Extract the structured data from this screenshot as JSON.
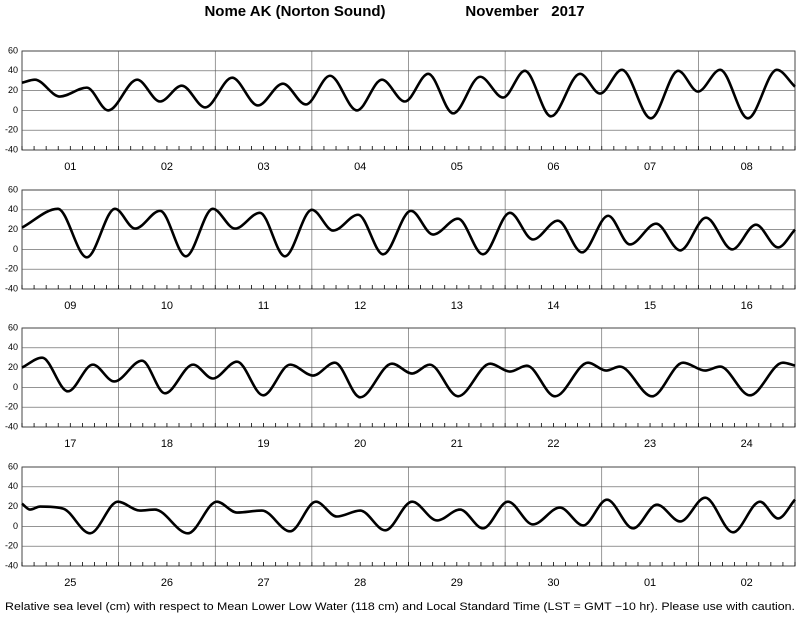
{
  "title": "Nome AK (Norton Sound)",
  "month": "November   2017",
  "note": "Relative sea level (cm) with respect to Mean Lower Low Water (118 cm) and Local Standard Time (LST = GMT −10 hr). Please use with caution.",
  "chart_data": [
    {
      "type": "line",
      "categories": [
        "01",
        "02",
        "03",
        "04",
        "05",
        "06",
        "07",
        "08"
      ],
      "x": [
        0,
        3.2,
        9.4,
        16.1,
        21.4,
        28.6,
        34.3,
        39.7,
        45.5,
        52.2,
        58.6,
        64.8,
        70.5,
        76.5,
        83.2,
        89.4,
        95.1,
        100.9,
        107.1,
        113.8,
        119.5,
        124.9,
        131.4,
        138.6,
        143.6,
        149.0,
        156.2,
        163.0,
        167.9,
        173.4,
        180.3,
        187.5,
        192
      ],
      "series": [
        {
          "color": "#000000",
          "values": [
            28,
            31,
            14,
            23,
            0,
            31,
            9,
            25,
            3,
            33,
            5,
            27,
            6,
            35,
            0,
            31,
            9,
            37,
            -3,
            34,
            13,
            40,
            -6,
            37,
            17,
            41,
            -8,
            40,
            19,
            41,
            -8,
            41,
            24
          ]
        }
      ],
      "xlim": [
        0,
        192
      ],
      "ylim": [
        -40,
        60
      ],
      "yticks": [
        -40,
        -20,
        0,
        20,
        40,
        60
      ],
      "xgrid": [
        0,
        24,
        48,
        72,
        96,
        120,
        144,
        168,
        192
      ],
      "minor_tick_step": 3,
      "grid": true
    },
    {
      "type": "line",
      "categories": [
        "09",
        "10",
        "11",
        "12",
        "13",
        "14",
        "15",
        "16"
      ],
      "x": [
        0,
        8.9,
        16.1,
        23.1,
        28.1,
        34.3,
        40.7,
        47.4,
        52.9,
        59.1,
        65.3,
        72.0,
        77.3,
        83.5,
        89.7,
        96.6,
        102.1,
        108.3,
        114.5,
        121.2,
        126.9,
        133.1,
        139.1,
        145.6,
        151.0,
        157.5,
        163.5,
        169.9,
        176.4,
        182.3,
        187.8,
        192
      ],
      "series": [
        {
          "color": "#000000",
          "values": [
            22,
            41,
            -8,
            41,
            21,
            39,
            -7,
            41,
            21,
            37,
            -7,
            40,
            19,
            35,
            -5,
            39,
            15,
            31,
            -5,
            37,
            10,
            29,
            -3,
            34,
            5,
            26,
            -1,
            32,
            0,
            25,
            2,
            20
          ]
        }
      ],
      "xlim": [
        0,
        192
      ],
      "ylim": [
        -40,
        60
      ],
      "yticks": [
        -40,
        -20,
        0,
        20,
        40,
        60
      ],
      "xgrid": [
        0,
        24,
        48,
        72,
        96,
        120,
        144,
        168,
        192
      ],
      "minor_tick_step": 3,
      "grid": true
    },
    {
      "type": "line",
      "categories": [
        "17",
        "18",
        "19",
        "20",
        "21",
        "22",
        "23",
        "24"
      ],
      "x": [
        0,
        5.0,
        11.4,
        17.6,
        22.9,
        29.8,
        35.5,
        42.5,
        47.4,
        53.4,
        59.9,
        66.6,
        72.3,
        77.7,
        84.0,
        91.9,
        96.9,
        101.3,
        108.3,
        116.3,
        121.2,
        125.4,
        132.4,
        140.6,
        145.1,
        148.5,
        156.5,
        164.2,
        169.7,
        173.4,
        180.8,
        189.0,
        192
      ],
      "series": [
        {
          "color": "#000000",
          "values": [
            20,
            30,
            -4,
            23,
            6,
            27,
            -6,
            23,
            9,
            26,
            -8,
            23,
            12,
            25,
            -10,
            24,
            14,
            23,
            -9,
            24,
            16,
            22,
            -9,
            25,
            17,
            21,
            -9,
            25,
            17,
            21,
            -8,
            25,
            22
          ]
        }
      ],
      "xlim": [
        0,
        192
      ],
      "ylim": [
        -40,
        60
      ],
      "yticks": [
        -40,
        -20,
        0,
        20,
        40,
        60
      ],
      "xgrid": [
        0,
        24,
        48,
        72,
        96,
        120,
        144,
        168,
        192
      ],
      "minor_tick_step": 3,
      "grid": true
    },
    {
      "type": "line",
      "categories": [
        "25",
        "26",
        "27",
        "28",
        "29",
        "30",
        "01",
        "02"
      ],
      "x": [
        0,
        2.0,
        4.5,
        10.2,
        16.9,
        23.8,
        29.3,
        33.0,
        41.2,
        48.4,
        53.4,
        59.6,
        66.6,
        73.0,
        78.2,
        84.0,
        90.2,
        96.9,
        103.1,
        108.8,
        114.5,
        120.7,
        126.9,
        133.6,
        139.4,
        145.3,
        151.8,
        157.7,
        163.5,
        169.7,
        176.6,
        183.3,
        187.8,
        192
      ],
      "series": [
        {
          "color": "#000000",
          "values": [
            23,
            17,
            20,
            18,
            -7,
            25,
            16,
            17,
            -7,
            25,
            14,
            16,
            -5,
            25,
            10,
            16,
            -4,
            25,
            6,
            17,
            -2,
            25,
            2,
            19,
            1,
            27,
            -2,
            22,
            5,
            29,
            -6,
            25,
            8,
            27
          ]
        }
      ],
      "xlim": [
        0,
        192
      ],
      "ylim": [
        -40,
        60
      ],
      "yticks": [
        -40,
        -20,
        0,
        20,
        40,
        60
      ],
      "xgrid": [
        0,
        24,
        48,
        72,
        96,
        120,
        144,
        168,
        192
      ],
      "minor_tick_step": 3,
      "grid": true
    }
  ]
}
